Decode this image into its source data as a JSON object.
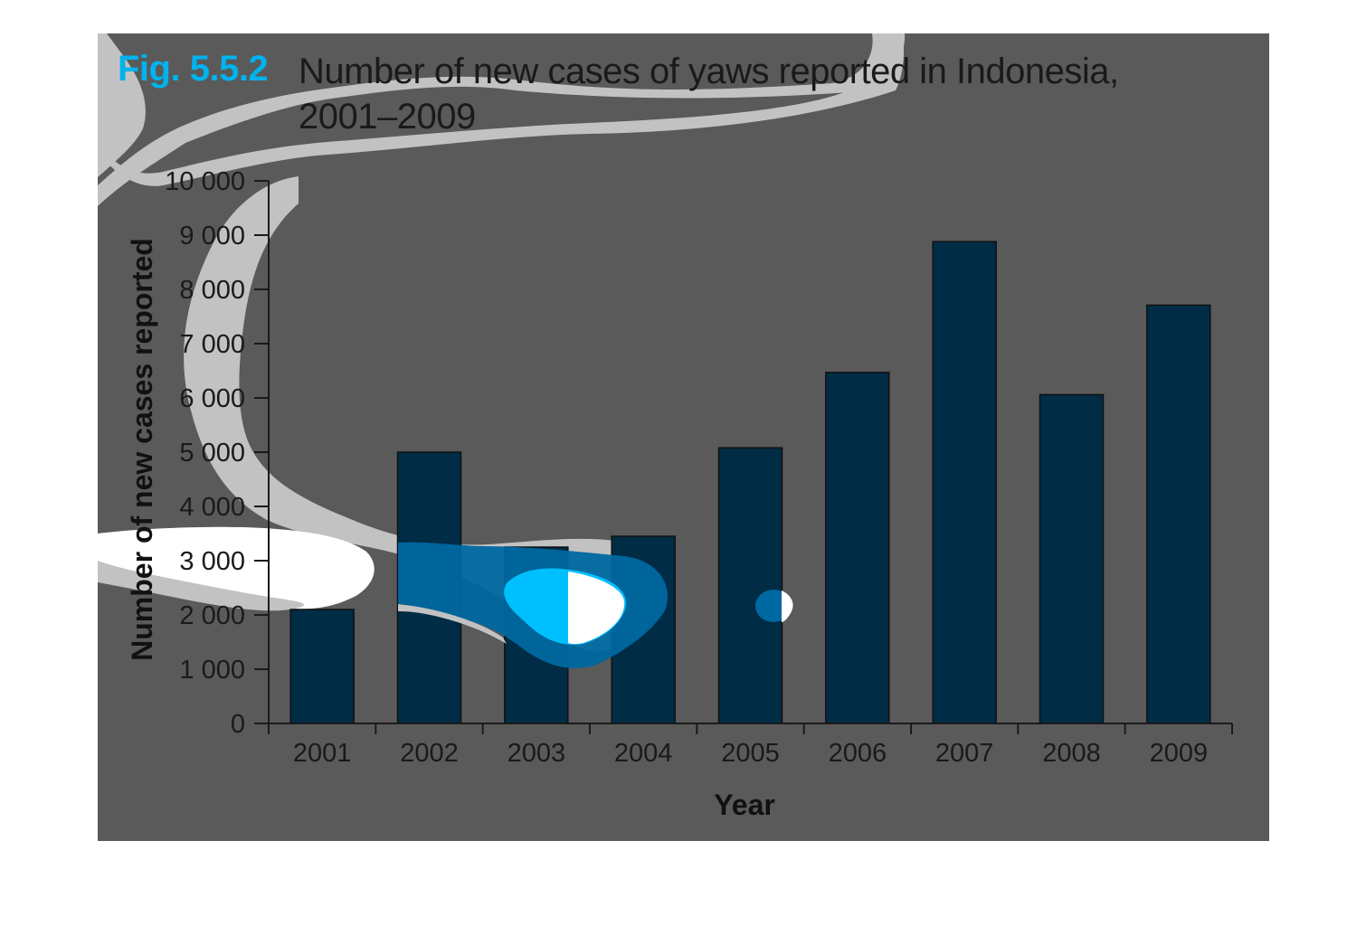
{
  "figure": {
    "label": "Fig. 5.5.2",
    "title_line1": "Number of new cases of yaws reported in Indonesia,",
    "title_line2": "2001–2009"
  },
  "chart_data": {
    "type": "bar",
    "title": "Number of new cases of yaws reported in Indonesia, 2001–2009",
    "xlabel": "Year",
    "ylabel": "Number of new cases reported",
    "categories": [
      "2001",
      "2002",
      "2003",
      "2004",
      "2005",
      "2006",
      "2007",
      "2008",
      "2009"
    ],
    "values": [
      2100,
      5000,
      3250,
      3450,
      5080,
      6470,
      8880,
      6060,
      7710
    ],
    "ylim": [
      0,
      10000
    ],
    "yticks": [
      0,
      1000,
      2000,
      3000,
      4000,
      5000,
      6000,
      7000,
      8000,
      9000,
      10000
    ],
    "ytick_labels": [
      "0",
      "1 000",
      "2 000",
      "3 000",
      "4 000",
      "5 000",
      "6 000",
      "7 000",
      "8 000",
      "9 000",
      "10 000"
    ],
    "grid": false,
    "legend": "none"
  },
  "colors": {
    "background": "#5a5a5a",
    "bar": "#002c45",
    "label_accent": "#00b2ee",
    "overlay_light": "#c2c2c2",
    "overlay_white": "#ffffff",
    "overlay_blue_mid": "#0068a0",
    "overlay_blue_bright": "#00bfff"
  }
}
